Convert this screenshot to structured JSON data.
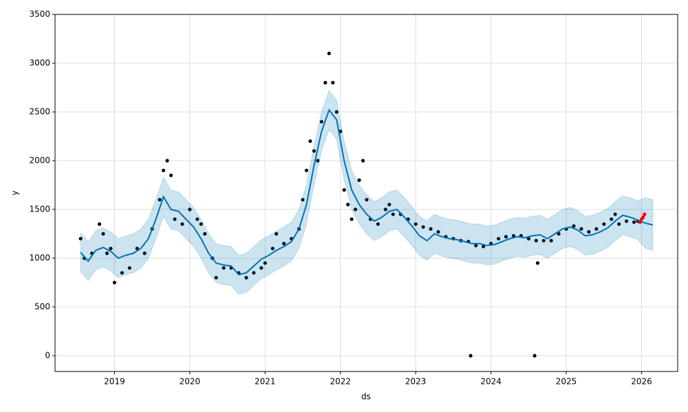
{
  "chart_data": {
    "type": "forecast",
    "xlabel": "ds",
    "ylabel": "y",
    "xlim": [
      2018.21,
      2026.48
    ],
    "ylim": [
      -162,
      3500
    ],
    "xticks": [
      2019,
      2020,
      2021,
      2022,
      2023,
      2024,
      2025,
      2026
    ],
    "yticks": [
      0,
      500,
      1000,
      1500,
      2000,
      2500,
      3000,
      3500
    ],
    "grid": true,
    "series": [
      {
        "kind": "points",
        "color": "#000000",
        "x": [
          2018.55,
          2018.6,
          2018.7,
          2018.8,
          2018.85,
          2018.9,
          2018.95,
          2019.0,
          2019.1,
          2019.2,
          2019.3,
          2019.4,
          2019.5,
          2019.6,
          2019.65,
          2019.7,
          2019.75,
          2019.8,
          2019.9,
          2020.0,
          2020.1,
          2020.15,
          2020.2,
          2020.3,
          2020.35,
          2020.45,
          2020.55,
          2020.65,
          2020.75,
          2020.85,
          2020.95,
          2021.0,
          2021.1,
          2021.15,
          2021.25,
          2021.35,
          2021.45,
          2021.5,
          2021.55,
          2021.6,
          2021.65,
          2021.7,
          2021.75,
          2021.8,
          2021.85,
          2021.9,
          2021.95,
          2022.0,
          2022.05,
          2022.1,
          2022.15,
          2022.2,
          2022.25,
          2022.3,
          2022.35,
          2022.4,
          2022.5,
          2022.6,
          2022.65,
          2022.7,
          2022.8,
          2022.9,
          2023.0,
          2023.1,
          2023.2,
          2023.3,
          2023.4,
          2023.5,
          2023.6,
          2023.7,
          2023.73,
          2023.8,
          2023.9,
          2024.0,
          2024.1,
          2024.2,
          2024.3,
          2024.4,
          2024.5,
          2024.58,
          2024.6,
          2024.62,
          2024.7,
          2024.8,
          2024.9,
          2025.0,
          2025.1,
          2025.2,
          2025.3,
          2025.4,
          2025.5,
          2025.6,
          2025.65,
          2025.7,
          2025.8,
          2025.9,
          2025.95
        ],
        "values": [
          1200,
          1000,
          1050,
          1350,
          1250,
          1050,
          1100,
          750,
          850,
          900,
          1100,
          1050,
          1300,
          1600,
          1900,
          2000,
          1850,
          1400,
          1350,
          1500,
          1400,
          1350,
          1250,
          1000,
          800,
          900,
          900,
          850,
          800,
          850,
          900,
          950,
          1100,
          1250,
          1150,
          1200,
          1300,
          1600,
          1900,
          2200,
          2100,
          2000,
          2400,
          2800,
          3100,
          2800,
          2500,
          2300,
          1700,
          1550,
          1400,
          1500,
          1800,
          2000,
          1600,
          1400,
          1350,
          1500,
          1550,
          1450,
          1450,
          1400,
          1350,
          1320,
          1300,
          1270,
          1220,
          1200,
          1180,
          1170,
          0,
          1130,
          1120,
          1150,
          1200,
          1220,
          1230,
          1230,
          1200,
          0,
          1180,
          950,
          1180,
          1180,
          1250,
          1300,
          1330,
          1300,
          1270,
          1300,
          1350,
          1400,
          1450,
          1350,
          1380,
          1370,
          1380
        ]
      },
      {
        "kind": "forecast",
        "color": "#0072B2",
        "x": [
          2018.55,
          2018.65,
          2018.75,
          2018.85,
          2018.95,
          2019.05,
          2019.15,
          2019.25,
          2019.35,
          2019.45,
          2019.55,
          2019.65,
          2019.75,
          2019.85,
          2019.95,
          2020.05,
          2020.15,
          2020.25,
          2020.35,
          2020.45,
          2020.55,
          2020.65,
          2020.75,
          2020.85,
          2020.95,
          2021.05,
          2021.15,
          2021.25,
          2021.35,
          2021.45,
          2021.55,
          2021.65,
          2021.75,
          2021.85,
          2021.95,
          2022.05,
          2022.15,
          2022.25,
          2022.35,
          2022.45,
          2022.55,
          2022.65,
          2022.75,
          2022.85,
          2022.95,
          2023.05,
          2023.15,
          2023.25,
          2023.35,
          2023.45,
          2023.55,
          2023.65,
          2023.75,
          2023.85,
          2023.95,
          2024.05,
          2024.15,
          2024.25,
          2024.35,
          2024.45,
          2024.55,
          2024.65,
          2024.75,
          2024.85,
          2024.95,
          2025.05,
          2025.15,
          2025.25,
          2025.35,
          2025.45,
          2025.55,
          2025.65,
          2025.75,
          2025.85,
          2025.95,
          2026.05,
          2026.15
        ],
        "values": [
          1060,
          970,
          1080,
          1110,
          1070,
          1000,
          1030,
          1050,
          1100,
          1200,
          1400,
          1630,
          1500,
          1480,
          1400,
          1320,
          1200,
          1050,
          950,
          930,
          920,
          830,
          850,
          920,
          990,
          1030,
          1080,
          1120,
          1170,
          1300,
          1550,
          1950,
          2300,
          2520,
          2420,
          2000,
          1700,
          1550,
          1450,
          1380,
          1420,
          1480,
          1500,
          1420,
          1330,
          1230,
          1180,
          1250,
          1220,
          1200,
          1190,
          1170,
          1150,
          1150,
          1130,
          1140,
          1170,
          1200,
          1220,
          1210,
          1230,
          1240,
          1200,
          1250,
          1300,
          1320,
          1290,
          1230,
          1240,
          1270,
          1310,
          1380,
          1440,
          1420,
          1390,
          1360,
          1340
        ],
        "lower": [
          860,
          770,
          880,
          910,
          870,
          800,
          830,
          850,
          900,
          1000,
          1200,
          1430,
          1300,
          1280,
          1200,
          1120,
          1000,
          850,
          750,
          730,
          720,
          630,
          650,
          720,
          790,
          830,
          880,
          920,
          970,
          1100,
          1350,
          1750,
          2100,
          2320,
          2220,
          1800,
          1500,
          1350,
          1250,
          1180,
          1220,
          1280,
          1300,
          1220,
          1130,
          1030,
          980,
          1050,
          1020,
          1000,
          990,
          970,
          950,
          950,
          930,
          940,
          970,
          1000,
          1020,
          1010,
          1030,
          1040,
          1000,
          1050,
          1100,
          1120,
          1090,
          1030,
          1040,
          1070,
          1110,
          1180,
          1240,
          1220,
          1190,
          1100,
          1080
        ],
        "upper": [
          1260,
          1170,
          1280,
          1310,
          1270,
          1200,
          1230,
          1250,
          1300,
          1400,
          1600,
          1830,
          1700,
          1680,
          1600,
          1520,
          1400,
          1250,
          1150,
          1130,
          1120,
          1030,
          1050,
          1120,
          1190,
          1230,
          1280,
          1320,
          1370,
          1500,
          1750,
          2150,
          2500,
          2720,
          2620,
          2200,
          1900,
          1750,
          1650,
          1580,
          1620,
          1680,
          1700,
          1620,
          1530,
          1430,
          1380,
          1450,
          1420,
          1400,
          1390,
          1370,
          1350,
          1350,
          1330,
          1340,
          1370,
          1400,
          1420,
          1410,
          1430,
          1440,
          1400,
          1450,
          1500,
          1520,
          1490,
          1430,
          1440,
          1470,
          1510,
          1580,
          1640,
          1620,
          1590,
          1620,
          1600
        ]
      },
      {
        "kind": "points",
        "color": "#ff0000",
        "x": [
          2025.98,
          2026.0,
          2026.02,
          2026.04
        ],
        "values": [
          1370,
          1400,
          1420,
          1450
        ]
      }
    ]
  }
}
